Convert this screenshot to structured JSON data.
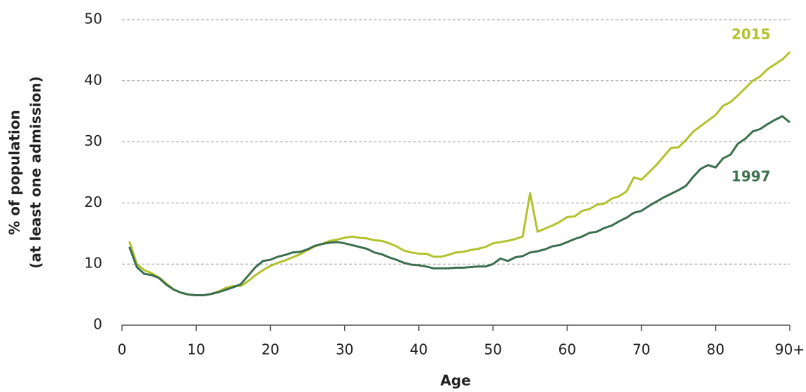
{
  "chart_data": {
    "type": "line",
    "xlabel": "Age",
    "ylabel": [
      "% of population",
      "(at least one admission)"
    ],
    "x": [
      1,
      2,
      3,
      4,
      5,
      6,
      7,
      8,
      9,
      10,
      11,
      12,
      13,
      14,
      15,
      16,
      17,
      18,
      19,
      20,
      21,
      22,
      23,
      24,
      25,
      26,
      27,
      28,
      29,
      30,
      31,
      32,
      33,
      34,
      35,
      36,
      37,
      38,
      39,
      40,
      41,
      42,
      43,
      44,
      45,
      46,
      47,
      48,
      49,
      50,
      51,
      52,
      53,
      54,
      55,
      56,
      57,
      58,
      59,
      60,
      61,
      62,
      63,
      64,
      65,
      66,
      67,
      68,
      69,
      70,
      71,
      72,
      73,
      74,
      75,
      76,
      77,
      78,
      79,
      80,
      81,
      82,
      83,
      84,
      85,
      86,
      87,
      88,
      89,
      90
    ],
    "series": [
      {
        "name": "2015",
        "color": "#b2c22c",
        "values": [
          13.7,
          10,
          9,
          8.5,
          7.8,
          6.8,
          5.8,
          5.3,
          5,
          4.9,
          4.9,
          5.1,
          5.5,
          6.1,
          6.4,
          6.4,
          7.2,
          8.2,
          9,
          9.7,
          10.2,
          10.6,
          11.1,
          11.6,
          12.3,
          12.9,
          13.3,
          13.8,
          14,
          14.3,
          14.5,
          14.3,
          14.2,
          13.9,
          13.8,
          13.4,
          12.9,
          12.2,
          11.9,
          11.7,
          11.7,
          11.2,
          11.2,
          11.5,
          11.9,
          12,
          12.3,
          12.5,
          12.8,
          13.4,
          13.6,
          13.8,
          14.1,
          14.5,
          21.6,
          15.3,
          15.8,
          16.3,
          16.9,
          17.7,
          17.8,
          18.7,
          19,
          19.7,
          19.9,
          20.7,
          21.1,
          21.9,
          24.2,
          23.8,
          25,
          26.2,
          27.6,
          29,
          29.1,
          30.3,
          31.7,
          32.6,
          33.5,
          34.4,
          35.9,
          36.5,
          37.6,
          38.8,
          40,
          40.7,
          41.9,
          42.7,
          43.5,
          44.7
        ]
      },
      {
        "name": "1997",
        "color": "#3b6e4e",
        "values": [
          12.8,
          9.5,
          8.4,
          8.2,
          7.7,
          6.6,
          5.8,
          5.3,
          5,
          4.9,
          4.9,
          5.1,
          5.4,
          5.8,
          6.2,
          6.7,
          8.1,
          9.5,
          10.5,
          10.7,
          11.2,
          11.5,
          11.9,
          12,
          12.4,
          13,
          13.3,
          13.5,
          13.6,
          13.4,
          13.1,
          12.8,
          12.5,
          11.9,
          11.6,
          11.1,
          10.7,
          10.2,
          9.9,
          9.8,
          9.6,
          9.3,
          9.3,
          9.3,
          9.4,
          9.4,
          9.5,
          9.6,
          9.6,
          10,
          10.9,
          10.5,
          11.1,
          11.3,
          11.9,
          12.1,
          12.4,
          12.9,
          13.1,
          13.6,
          14.1,
          14.5,
          15.1,
          15.3,
          15.9,
          16.3,
          17,
          17.6,
          18.4,
          18.7,
          19.5,
          20.2,
          20.9,
          21.5,
          22.1,
          22.8,
          24.3,
          25.6,
          26.2,
          25.8,
          27.3,
          27.9,
          29.7,
          30.5,
          31.7,
          32.1,
          32.9,
          33.6,
          34.2,
          33.2
        ]
      }
    ],
    "xlim": [
      0,
      90
    ],
    "xticks": [
      0,
      10,
      20,
      30,
      40,
      50,
      60,
      70,
      80,
      {
        "value": 90,
        "label": "90+"
      }
    ],
    "ylim": [
      0,
      50
    ],
    "yticks": [
      0,
      10,
      20,
      30,
      40,
      50
    ],
    "grid": true
  }
}
